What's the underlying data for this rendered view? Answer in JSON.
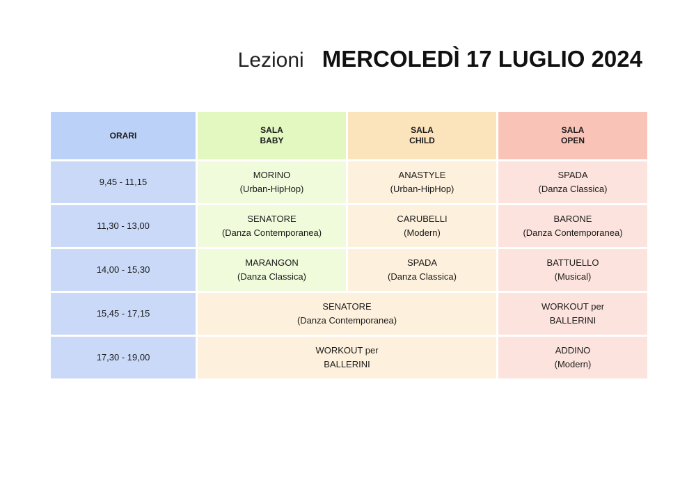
{
  "header": {
    "prefix": "Lezioni",
    "date": "MERCOLEDÌ 17 LUGLIO 2024"
  },
  "table": {
    "columns": {
      "orari": "ORARI",
      "baby_line1": "SALA",
      "baby_line2": "BABY",
      "child_line1": "SALA",
      "child_line2": "CHILD",
      "open_line1": "SALA",
      "open_line2": "OPEN"
    },
    "rows": [
      {
        "time": "9,45 - 11,15",
        "baby": [
          "MORINO",
          "(Urban-HipHop)"
        ],
        "child": [
          "ANASTYLE",
          "(Urban-HipHop)"
        ],
        "open": [
          "SPADA",
          "(Danza Classica)"
        ]
      },
      {
        "time": "11,30 - 13,00",
        "baby": [
          "SENATORE",
          "(Danza Contemporanea)"
        ],
        "child": [
          "CARUBELLI",
          "(Modern)"
        ],
        "open": [
          "BARONE",
          "(Danza Contemporanea)"
        ]
      },
      {
        "time": "14,00 - 15,30",
        "baby": [
          "MARANGON",
          "(Danza Classica)"
        ],
        "child": [
          "SPADA",
          "(Danza Classica)"
        ],
        "open": [
          "BATTUELLO",
          "(Musical)"
        ]
      },
      {
        "time": "15,45 - 17,15",
        "merged": [
          "SENATORE",
          "(Danza Contemporanea)"
        ],
        "open": [
          "WORKOUT per",
          "BALLERINI"
        ]
      },
      {
        "time": "17,30 - 19,00",
        "merged": [
          "WORKOUT per",
          "BALLERINI"
        ],
        "open": [
          "ADDINO",
          "(Modern)"
        ]
      }
    ]
  },
  "colors": {
    "orari": "#c9d9f7",
    "baby": "#effbdb",
    "child": "#fdf0dc",
    "open": "#fde3dd"
  }
}
